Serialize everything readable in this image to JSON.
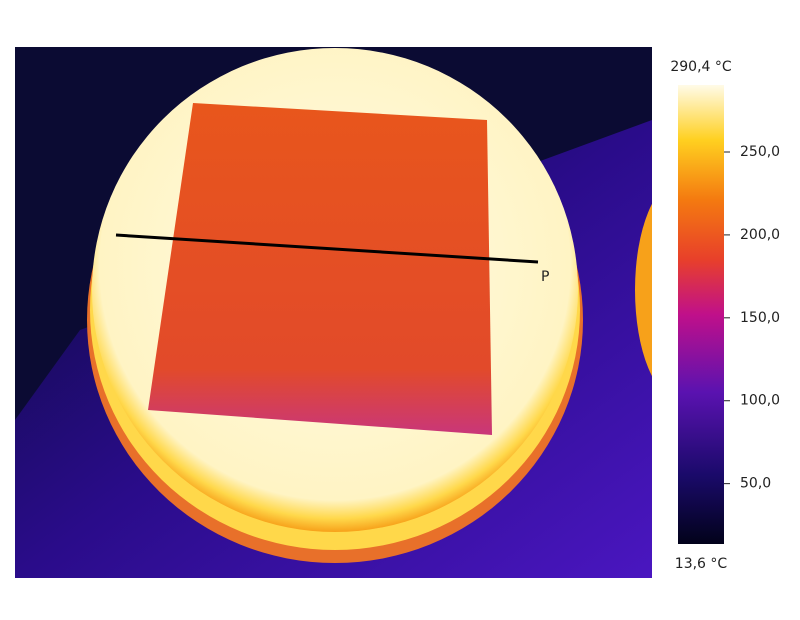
{
  "thermal_image": {
    "profile_label": "P"
  },
  "color_scale": {
    "lim": [
      {
        "value": 13.6,
        "label": "13,6 °C"
      },
      {
        "value": 290.4,
        "label": "290,4 °C"
      }
    ],
    "ticks": [
      {
        "value": 50,
        "label": "50,0"
      },
      {
        "value": 100,
        "label": "100,0"
      },
      {
        "value": 150,
        "label": "150,0"
      },
      {
        "value": 200,
        "label": "200,0"
      },
      {
        "value": 250,
        "label": "250,0"
      }
    ]
  }
}
